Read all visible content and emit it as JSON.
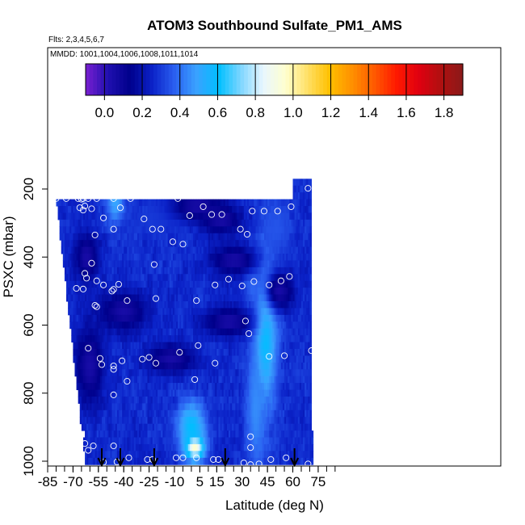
{
  "chart_data": {
    "type": "heatmap",
    "title": "ATOM3 Southbound Sulfate_PM1_AMS",
    "flights_note": "Flts: 2,3,4,5,6,7",
    "dates_note": "MMDD: 1001,1004,1006,1008,1011,1014",
    "xlabel": "Latitude (deg N)",
    "ylabel": "PSXC (mbar)",
    "xlim": [
      -85,
      85
    ],
    "ylim": [
      1000,
      100
    ],
    "x_ticks": [
      -85,
      -70,
      -55,
      -40,
      -25,
      -10,
      5,
      15,
      30,
      45,
      60,
      75
    ],
    "x_tick_labels": [
      "-85",
      "-70",
      "-55",
      "-40",
      "-25",
      "-10",
      "5",
      "15",
      "30",
      "45",
      "60",
      "75"
    ],
    "y_ticks": [
      200,
      400,
      600,
      800,
      1000
    ],
    "y_tick_labels": [
      "200",
      "400",
      "600",
      "800",
      "1000"
    ],
    "colorbar": {
      "range": [
        -0.1,
        1.9
      ],
      "ticks": [
        0.0,
        0.2,
        0.4,
        0.6,
        0.8,
        1.0,
        1.2,
        1.4,
        1.6,
        1.8
      ],
      "tick_labels": [
        "0.0",
        "0.2",
        "0.4",
        "0.6",
        "0.8",
        "1.0",
        "1.2",
        "1.4",
        "1.6",
        "1.8"
      ],
      "colors": [
        "#7a1fd1",
        "#2010b0",
        "#00008b",
        "#0b22c8",
        "#2a5ff0",
        "#3aa2ff",
        "#00bfff",
        "#7fd6ff",
        "#e8f6ff",
        "#ffffcf",
        "#ffe066",
        "#ffc000",
        "#ff9000",
        "#ff5a00",
        "#ff1a00",
        "#e00010",
        "#b01010",
        "#8b1a1a"
      ]
    },
    "grid": false,
    "sounding_arrows_lat": [
      -53,
      -42,
      -22,
      20,
      61
    ],
    "profiles": [
      {
        "lat_min": -80,
        "lat_max": 60,
        "p_min": 215
      },
      {
        "lat_min": 60,
        "lat_max": 70,
        "p_min": 165
      }
    ],
    "bottom_rows": [
      {
        "p": 970,
        "lat_min": -59
      },
      {
        "p": 950,
        "lat_min": -62
      },
      {
        "p": 920,
        "lat_min": -63
      }
    ],
    "features": [
      {
        "lat": 2,
        "p": 960,
        "value": 0.95,
        "sl": 4,
        "sp": 25,
        "kind": "blob"
      },
      {
        "lat": 0,
        "p": 900,
        "value": 0.6,
        "sl": 6,
        "sp": 55,
        "kind": "blob"
      },
      {
        "lat": 44,
        "p": 620,
        "value": 0.6,
        "sl": 5,
        "sp": 160,
        "kind": "blob"
      },
      {
        "lat": 38,
        "p": 850,
        "value": 0.45,
        "sl": 4,
        "sp": 120,
        "kind": "blob"
      },
      {
        "lat": 37,
        "p": 480,
        "value": 0.4,
        "sl": 4,
        "sp": 40,
        "kind": "blob"
      },
      {
        "lat": -45,
        "p": 240,
        "value": 0.5,
        "sl": 4,
        "sp": 45,
        "kind": "blob"
      },
      {
        "lat": 50,
        "p": 320,
        "value": 0.35,
        "sl": 6,
        "sp": 60,
        "kind": "blob"
      },
      {
        "lat": -18,
        "p": 280,
        "value": 0.3,
        "sl": 14,
        "sp": 40,
        "kind": "blob"
      },
      {
        "lat": -40,
        "p": 560,
        "value": 0.05,
        "sl": 10,
        "sp": 40,
        "kind": "low"
      },
      {
        "lat": -12,
        "p": 700,
        "value": 0.05,
        "sl": 10,
        "sp": 30,
        "kind": "low"
      },
      {
        "lat": 22,
        "p": 590,
        "value": 0.05,
        "sl": 10,
        "sp": 30,
        "kind": "low"
      },
      {
        "lat": 18,
        "p": 290,
        "value": 0.05,
        "sl": 8,
        "sp": 30,
        "kind": "low"
      },
      {
        "lat": 52,
        "p": 500,
        "value": 0.05,
        "sl": 6,
        "sp": 40,
        "kind": "low"
      },
      {
        "lat": -60,
        "p": 720,
        "value": 0.05,
        "sl": 6,
        "sp": 80,
        "kind": "low"
      },
      {
        "lat": 3,
        "p": 250,
        "value": 0.05,
        "sl": 10,
        "sp": 30,
        "kind": "low"
      },
      {
        "lat": -62,
        "p": 400,
        "value": 0.05,
        "sl": 5,
        "sp": 50,
        "kind": "low"
      },
      {
        "lat": 25,
        "p": 410,
        "value": 0.05,
        "sl": 10,
        "sp": 30,
        "kind": "low"
      }
    ],
    "points": [
      {
        "lat": -80,
        "p": 228
      },
      {
        "lat": -74,
        "p": 228
      },
      {
        "lat": -67,
        "p": 228
      },
      {
        "lat": -65,
        "p": 230
      },
      {
        "lat": -64,
        "p": 228
      },
      {
        "lat": -61,
        "p": 228
      },
      {
        "lat": -56,
        "p": 228
      },
      {
        "lat": -46,
        "p": 228
      },
      {
        "lat": -36,
        "p": 228
      },
      {
        "lat": -8,
        "p": 228
      },
      {
        "lat": 25,
        "p": 198
      },
      {
        "lat": 69,
        "p": 198
      },
      {
        "lat": -66,
        "p": 255
      },
      {
        "lat": -63,
        "p": 250
      },
      {
        "lat": -59,
        "p": 258
      },
      {
        "lat": -42,
        "p": 255
      },
      {
        "lat": -64,
        "p": 262
      },
      {
        "lat": -52,
        "p": 285
      },
      {
        "lat": -28,
        "p": 288
      },
      {
        "lat": -1,
        "p": 278
      },
      {
        "lat": 7,
        "p": 252
      },
      {
        "lat": 12,
        "p": 275
      },
      {
        "lat": 18,
        "p": 275
      },
      {
        "lat": 36,
        "p": 265
      },
      {
        "lat": 43,
        "p": 265
      },
      {
        "lat": 51,
        "p": 265
      },
      {
        "lat": 59,
        "p": 252
      },
      {
        "lat": -46,
        "p": 318
      },
      {
        "lat": -23,
        "p": 318
      },
      {
        "lat": -18,
        "p": 318
      },
      {
        "lat": -57,
        "p": 335
      },
      {
        "lat": -11,
        "p": 355
      },
      {
        "lat": -5,
        "p": 362
      },
      {
        "lat": 29,
        "p": 318
      },
      {
        "lat": 33,
        "p": 333
      },
      {
        "lat": -59,
        "p": 418
      },
      {
        "lat": -22,
        "p": 422
      },
      {
        "lat": -63,
        "p": 448
      },
      {
        "lat": -62,
        "p": 462
      },
      {
        "lat": -56,
        "p": 470
      },
      {
        "lat": 22,
        "p": 465
      },
      {
        "lat": 37,
        "p": 472
      },
      {
        "lat": 53,
        "p": 470
      },
      {
        "lat": 58,
        "p": 457
      },
      {
        "lat": -68,
        "p": 492
      },
      {
        "lat": -64,
        "p": 494
      },
      {
        "lat": -52,
        "p": 482
      },
      {
        "lat": -47,
        "p": 500
      },
      {
        "lat": -46,
        "p": 495
      },
      {
        "lat": -43,
        "p": 480
      },
      {
        "lat": -21,
        "p": 522
      },
      {
        "lat": 3,
        "p": 528
      },
      {
        "lat": 14,
        "p": 482
      },
      {
        "lat": 30,
        "p": 485
      },
      {
        "lat": 46,
        "p": 482
      },
      {
        "lat": -57,
        "p": 542
      },
      {
        "lat": -56,
        "p": 546
      },
      {
        "lat": -38,
        "p": 528
      },
      {
        "lat": 32,
        "p": 588
      },
      {
        "lat": 34,
        "p": 625
      },
      {
        "lat": -61,
        "p": 668
      },
      {
        "lat": -54,
        "p": 698
      },
      {
        "lat": -53,
        "p": 716
      },
      {
        "lat": -46,
        "p": 730
      },
      {
        "lat": -41,
        "p": 705
      },
      {
        "lat": -29,
        "p": 700
      },
      {
        "lat": -25,
        "p": 695
      },
      {
        "lat": -21,
        "p": 712
      },
      {
        "lat": -7,
        "p": 680
      },
      {
        "lat": 4,
        "p": 660
      },
      {
        "lat": 14,
        "p": 712
      },
      {
        "lat": 46,
        "p": 692
      },
      {
        "lat": 55,
        "p": 690
      },
      {
        "lat": 71,
        "p": 675
      },
      {
        "lat": -46,
        "p": 720
      },
      {
        "lat": -38,
        "p": 765
      },
      {
        "lat": 2,
        "p": 760
      },
      {
        "lat": -46,
        "p": 805
      },
      {
        "lat": 35,
        "p": 928
      },
      {
        "lat": 35,
        "p": 960
      },
      {
        "lat": -58,
        "p": 955
      },
      {
        "lat": -63,
        "p": 948
      },
      {
        "lat": -61,
        "p": 968
      },
      {
        "lat": -46,
        "p": 955
      },
      {
        "lat": -37,
        "p": 990
      },
      {
        "lat": -26,
        "p": 995
      },
      {
        "lat": -23,
        "p": 995
      },
      {
        "lat": -9,
        "p": 990
      },
      {
        "lat": -5,
        "p": 990
      },
      {
        "lat": 3,
        "p": 990
      },
      {
        "lat": 13,
        "p": 995
      },
      {
        "lat": 16,
        "p": 995
      },
      {
        "lat": 31,
        "p": 1005
      },
      {
        "lat": 35,
        "p": 1010
      },
      {
        "lat": 40,
        "p": 1008
      },
      {
        "lat": 47,
        "p": 995
      },
      {
        "lat": 56,
        "p": 990
      },
      {
        "lat": 69,
        "p": 1008
      },
      {
        "lat": -52,
        "p": 1003
      },
      {
        "lat": -44,
        "p": 1002
      }
    ]
  }
}
